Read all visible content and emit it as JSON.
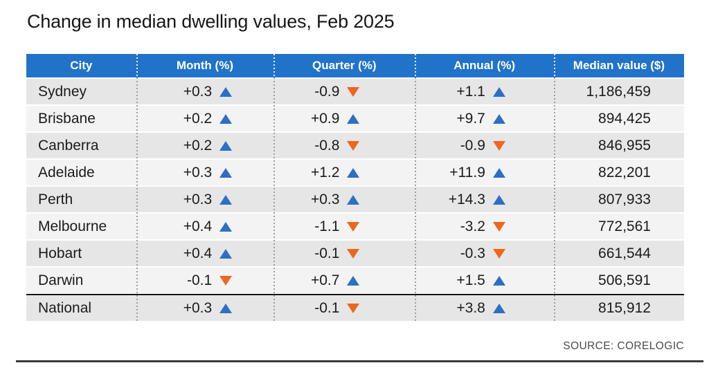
{
  "title": "Change in median dwelling values, Feb 2025",
  "source": "SOURCE: CORELOGIC",
  "colors": {
    "header_bg": "#2173c9",
    "header_text": "#ffffff",
    "up_triangle": "#2d6fc3",
    "down_triangle": "#ec671f",
    "row_dark": "#e6e6e6",
    "row_light": "#f3f3f3",
    "body_text": "#1b1b1b"
  },
  "chart_data": {
    "type": "table",
    "title": "Change in median dwelling values, Feb 2025",
    "columns": [
      "City",
      "Month (%)",
      "Quarter (%)",
      "Annual (%)",
      "Median value ($)"
    ],
    "rows": [
      {
        "city": "Sydney",
        "month": "+0.3",
        "month_dir": "up",
        "quarter": "-0.9",
        "quarter_dir": "down",
        "annual": "+1.1",
        "annual_dir": "up",
        "median_value": "1,186,459",
        "total": false
      },
      {
        "city": "Brisbane",
        "month": "+0.2",
        "month_dir": "up",
        "quarter": "+0.9",
        "quarter_dir": "up",
        "annual": "+9.7",
        "annual_dir": "up",
        "median_value": "894,425",
        "total": false
      },
      {
        "city": "Canberra",
        "month": "+0.2",
        "month_dir": "up",
        "quarter": "-0.8",
        "quarter_dir": "down",
        "annual": "-0.9",
        "annual_dir": "down",
        "median_value": "846,955",
        "total": false
      },
      {
        "city": "Adelaide",
        "month": "+0.3",
        "month_dir": "up",
        "quarter": "+1.2",
        "quarter_dir": "up",
        "annual": "+11.9",
        "annual_dir": "up",
        "median_value": "822,201",
        "total": false
      },
      {
        "city": "Perth",
        "month": "+0.3",
        "month_dir": "up",
        "quarter": "+0.3",
        "quarter_dir": "up",
        "annual": "+14.3",
        "annual_dir": "up",
        "median_value": "807,933",
        "total": false
      },
      {
        "city": "Melbourne",
        "month": "+0.4",
        "month_dir": "up",
        "quarter": "-1.1",
        "quarter_dir": "down",
        "annual": "-3.2",
        "annual_dir": "down",
        "median_value": "772,561",
        "total": false
      },
      {
        "city": "Hobart",
        "month": "+0.4",
        "month_dir": "up",
        "quarter": "-0.1",
        "quarter_dir": "down",
        "annual": "-0.3",
        "annual_dir": "down",
        "median_value": "661,544",
        "total": false
      },
      {
        "city": "Darwin",
        "month": "-0.1",
        "month_dir": "down",
        "quarter": "+0.7",
        "quarter_dir": "up",
        "annual": "+1.5",
        "annual_dir": "up",
        "median_value": "506,591",
        "total": false
      },
      {
        "city": "National",
        "month": "+0.3",
        "month_dir": "up",
        "quarter": "-0.1",
        "quarter_dir": "down",
        "annual": "+3.8",
        "annual_dir": "up",
        "median_value": "815,912",
        "total": true
      }
    ]
  }
}
